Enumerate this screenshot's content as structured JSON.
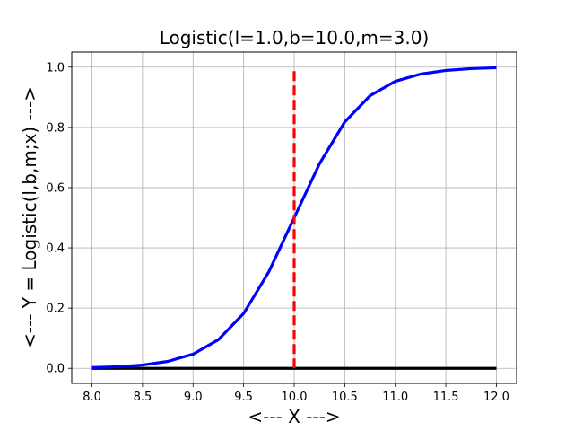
{
  "chart_data": {
    "type": "line",
    "title": "Logistic(l=1.0,b=10.0,m=3.0)",
    "xlabel": "<--- X --->",
    "ylabel": "<--- Y = Logistic(l,b,m;x) --->",
    "xlim": [
      7.8,
      12.2
    ],
    "ylim": [
      -0.05,
      1.05
    ],
    "xticks": [
      8.0,
      8.5,
      9.0,
      9.5,
      10.0,
      10.5,
      11.0,
      11.5,
      12.0
    ],
    "xtick_labels": [
      "8.0",
      "8.5",
      "9.0",
      "9.5",
      "10.0",
      "10.5",
      "11.0",
      "11.5",
      "12.0"
    ],
    "yticks": [
      0.0,
      0.2,
      0.4,
      0.6,
      0.8,
      1.0
    ],
    "ytick_labels": [
      "0.0",
      "0.2",
      "0.4",
      "0.6",
      "0.8",
      "1.0"
    ],
    "grid": true,
    "series": [
      {
        "color": "#0000ff",
        "style": "solid",
        "x": [
          8.0,
          8.25,
          8.5,
          8.75,
          9.0,
          9.25,
          9.5,
          9.75,
          10.0,
          10.25,
          10.5,
          10.75,
          11.0,
          11.25,
          11.5,
          11.75,
          12.0
        ],
        "y": [
          0.0025,
          0.0052,
          0.011,
          0.023,
          0.047,
          0.095,
          0.182,
          0.321,
          0.5,
          0.679,
          0.818,
          0.905,
          0.953,
          0.977,
          0.989,
          0.995,
          0.998
        ]
      },
      {
        "color": "#ff0000",
        "style": "dashed",
        "x": [
          10.0,
          10.0
        ],
        "y": [
          0.0,
          1.0
        ]
      },
      {
        "color": "#000000",
        "style": "solid",
        "x": [
          8.0,
          12.0
        ],
        "y": [
          0.0,
          0.0
        ]
      }
    ]
  }
}
